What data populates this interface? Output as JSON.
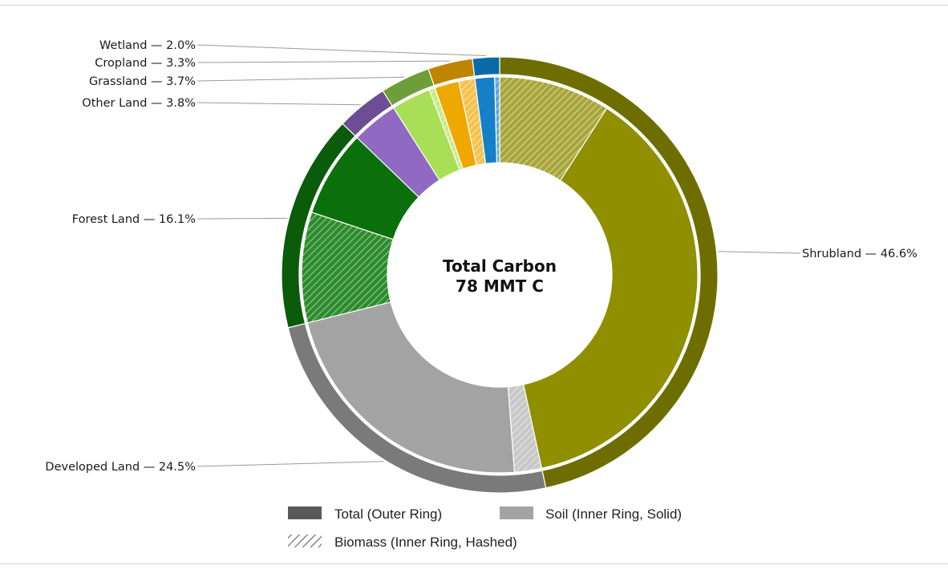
{
  "chart_data": {
    "type": "pie",
    "title": "Total Carbon",
    "total_label": "78 MMT C",
    "categories": [
      {
        "name": "Shrubland",
        "total_pct": 46.6,
        "color": "#6e6e00",
        "soil_color": "#8f8f00",
        "biomass_color": "#a8a63a",
        "biomass_frac": 0.195,
        "biomass_first": true
      },
      {
        "name": "Developed Land",
        "total_pct": 24.5,
        "color": "#7a7a7a",
        "soil_color": "#a3a3a3",
        "biomass_color": "#c8c8c8",
        "biomass_frac": 0.09,
        "biomass_first": true
      },
      {
        "name": "Forest Land",
        "total_pct": 16.1,
        "color": "#0a5c0a",
        "soil_color": "#0b700b",
        "biomass_color": "#2d8c2d",
        "biomass_frac": 0.56,
        "biomass_first": true
      },
      {
        "name": "Other Land",
        "total_pct": 3.8,
        "color": "#6c4e94",
        "soil_color": "#8f69c2",
        "biomass_color": "#a98bd6",
        "biomass_frac": 0.0,
        "biomass_first": false
      },
      {
        "name": "Grassland",
        "total_pct": 3.7,
        "color": "#6d9e3a",
        "soil_color": "#a9df57",
        "biomass_color": "#c4ea86",
        "biomass_frac": 0.13,
        "biomass_first": false
      },
      {
        "name": "Cropland",
        "total_pct": 3.3,
        "color": "#c08500",
        "soil_color": "#eea800",
        "biomass_color": "#f4c24f",
        "biomass_frac": 0.4,
        "biomass_first": false
      },
      {
        "name": "Wetland",
        "total_pct": 2.0,
        "color": "#0a6aa8",
        "soil_color": "#1580c8",
        "biomass_color": "#5fa6d6",
        "biomass_frac": 0.2,
        "biomass_first": false
      }
    ],
    "labels": [
      "Shrubland — 46.6%",
      "Developed Land — 24.5%",
      "Forest Land — 16.1%",
      "Other Land — 3.8%",
      "Grassland — 3.7%",
      "Cropland — 3.3%",
      "Wetland — 2.0%"
    ],
    "legend": [
      {
        "label": "Total (Outer Ring)",
        "color": "#595959",
        "style": "solid"
      },
      {
        "label": "Soil (Inner Ring, Solid)",
        "color": "#a3a3a3",
        "style": "solid"
      },
      {
        "label": "Biomass (Inner Ring, Hashed)",
        "color": "#9a9a9a",
        "style": "hatched"
      }
    ],
    "legend_placement": "bottom-center"
  }
}
